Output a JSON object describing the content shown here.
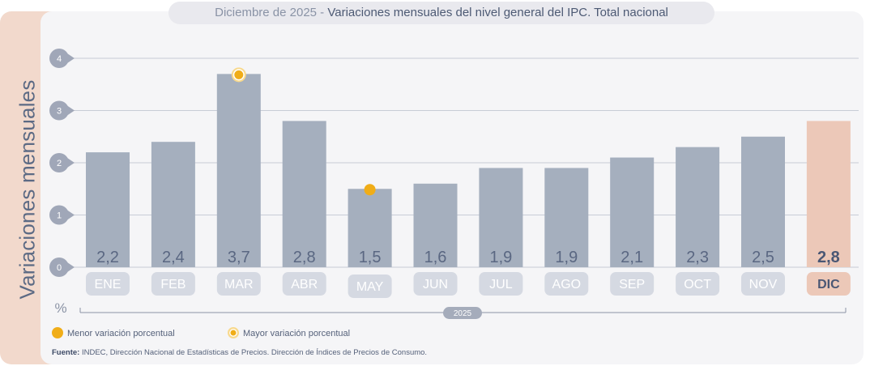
{
  "header": {
    "date": "Diciembre de 2025",
    "separator": " - ",
    "title": "Variaciones mensuales del nivel general del IPC. Total nacional"
  },
  "side_label": "Variaciones mensuales",
  "unit_label": "%",
  "legend": {
    "min_label": "Menor variación porcentual",
    "max_label": "Mayor variación porcentual"
  },
  "source": {
    "label": "Fuente:",
    "text": "INDEC, Dirección Nacional de Estadísticas de Precios. Dirección de Índices de Precios de Consumo."
  },
  "colors": {
    "bar": "#a5afbe",
    "highlight_bar": "#ecc8b8",
    "marker": "#f0ad18",
    "grid": "#c8ccd6",
    "tick_circle": "#a0a7b8"
  },
  "chart_data": {
    "type": "bar",
    "title": "Variaciones mensuales del nivel general del IPC. Total nacional",
    "ylabel": "Variaciones mensuales",
    "yunit": "%",
    "xlabel": "2025",
    "categories": [
      "ENE",
      "FEB",
      "MAR",
      "ABR",
      "MAY",
      "JUN",
      "JUL",
      "AGO",
      "SEP",
      "OCT",
      "NOV",
      "DIC"
    ],
    "values": [
      2.2,
      2.4,
      3.7,
      2.8,
      1.5,
      1.6,
      1.9,
      1.9,
      2.1,
      2.3,
      2.5,
      2.8
    ],
    "value_labels": [
      "2,2",
      "2,4",
      "3,7",
      "2,8",
      "1,5",
      "1,6",
      "1,9",
      "1,9",
      "2,1",
      "2,3",
      "2,5",
      "2,8"
    ],
    "yticks": [
      0,
      1,
      2,
      3,
      4
    ],
    "ylim": [
      0,
      4
    ],
    "highlight_category": "DIC",
    "max_category": "MAR",
    "min_category": "MAY",
    "grid": true,
    "legend_position": "bottom-left"
  }
}
